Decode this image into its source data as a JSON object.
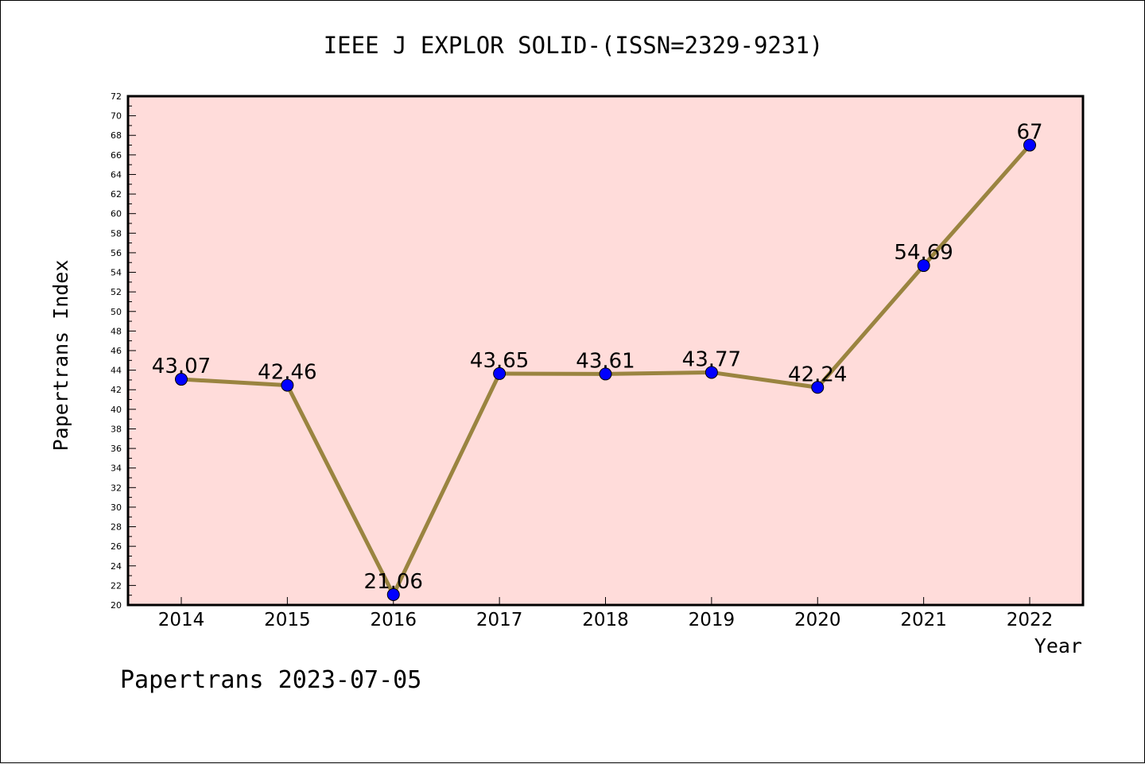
{
  "footer_text": "Papertrans 2023-07-05",
  "colors": {
    "plot_background": "#FFDCDA",
    "line": "#9A8440",
    "marker": "#0000FF"
  },
  "chart_data": {
    "type": "line",
    "title": "IEEE J EXPLOR SOLID-(ISSN=2329-9231)",
    "xlabel": "Year",
    "ylabel": "Papertrans Index",
    "categories": [
      "2014",
      "2015",
      "2016",
      "2017",
      "2018",
      "2019",
      "2020",
      "2021",
      "2022"
    ],
    "series": [
      {
        "values": [
          43.07,
          42.46,
          21.06,
          43.65,
          43.61,
          43.77,
          42.24,
          54.69,
          67
        ],
        "labels": [
          "43.07",
          "42.46",
          "21.06",
          "43.65",
          "43.61",
          "43.77",
          "42.24",
          "54.69",
          "67"
        ]
      }
    ],
    "ylim": [
      20,
      72
    ],
    "ytick_step": 2,
    "grid": false,
    "legend": "none"
  }
}
